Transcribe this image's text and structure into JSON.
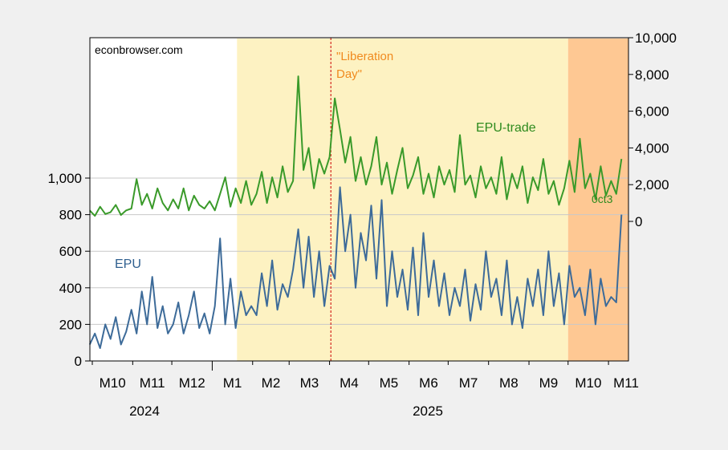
{
  "chart_data": {
    "type": "line",
    "source_label": "econbrowser.com",
    "x_start_date": "2024-09-29",
    "x_step_days": 4,
    "left_axis": {
      "ticks": [
        0,
        200,
        400,
        600,
        800,
        1000
      ],
      "tick_labels": [
        "0",
        "200",
        "400",
        "600",
        "800",
        "1,000"
      ]
    },
    "right_axis": {
      "ticks": [
        0,
        2000,
        4000,
        6000,
        8000,
        10000
      ],
      "tick_labels": [
        "0",
        "2,000",
        "4,000",
        "6,000",
        "8,000",
        "10,000"
      ]
    },
    "x_month_labels": [
      "M10",
      "M11",
      "M12",
      "M1",
      "M2",
      "M3",
      "M4",
      "M5",
      "M6",
      "M7",
      "M8",
      "M9",
      "M10",
      "M11"
    ],
    "x_year_labels": [
      "2024",
      "2025"
    ],
    "grid": "horizontal",
    "shading": [
      {
        "from": "2025-01-20",
        "to": "2025-10-01",
        "color": "#fdf2c2"
      },
      {
        "from": "2025-10-01",
        "to": "end",
        "color": "#fec893"
      }
    ],
    "annotations": {
      "liberation_day_line1": "\"Liberation",
      "liberation_day_line2": "Day\"",
      "liberation_day_date": "2025-04-02",
      "oct_label": "0ct3"
    },
    "series": [
      {
        "name": "EPU",
        "axis": "left",
        "color": "#3d6b99",
        "values": [
          90,
          150,
          70,
          200,
          120,
          240,
          90,
          160,
          280,
          150,
          380,
          200,
          460,
          180,
          300,
          150,
          200,
          320,
          150,
          250,
          380,
          180,
          260,
          150,
          300,
          670,
          200,
          450,
          180,
          380,
          250,
          300,
          250,
          480,
          300,
          550,
          280,
          420,
          350,
          500,
          720,
          400,
          680,
          350,
          600,
          300,
          520,
          450,
          950,
          600,
          800,
          400,
          700,
          550,
          850,
          450,
          880,
          300,
          600,
          350,
          500,
          280,
          620,
          250,
          700,
          350,
          550,
          300,
          480,
          250,
          400,
          300,
          500,
          220,
          420,
          280,
          600,
          350,
          450,
          250,
          550,
          200,
          350,
          180,
          450,
          300,
          500,
          250,
          600,
          300,
          480,
          200,
          520,
          350,
          400,
          250,
          500,
          200,
          450,
          300,
          350,
          320,
          800
        ]
      },
      {
        "name": "EPU-trade",
        "axis": "right",
        "color": "#3a9a2a",
        "values": [
          600,
          300,
          800,
          400,
          500,
          900,
          350,
          600,
          700,
          2300,
          900,
          1500,
          700,
          1800,
          1000,
          600,
          1200,
          700,
          1800,
          600,
          1400,
          900,
          700,
          1100,
          600,
          1500,
          2400,
          800,
          1800,
          1000,
          2200,
          900,
          1500,
          2700,
          1000,
          2400,
          1300,
          3000,
          1600,
          2200,
          7900,
          2800,
          4000,
          1800,
          3400,
          2600,
          3500,
          6700,
          5000,
          3200,
          4600,
          2200,
          3500,
          2000,
          3000,
          4600,
          2000,
          3200,
          1500,
          2800,
          4000,
          1800,
          2500,
          3500,
          1500,
          2600,
          1300,
          3000,
          2000,
          2800,
          1600,
          4700,
          2000,
          2500,
          1300,
          3000,
          1800,
          2400,
          1500,
          3500,
          1200,
          2600,
          1800,
          3000,
          1000,
          2400,
          1700,
          3400,
          1500,
          2200,
          900,
          1800,
          3300,
          1600,
          4500,
          1800,
          2600,
          1200,
          3000,
          1400,
          2200,
          1500,
          3400
        ]
      }
    ]
  }
}
